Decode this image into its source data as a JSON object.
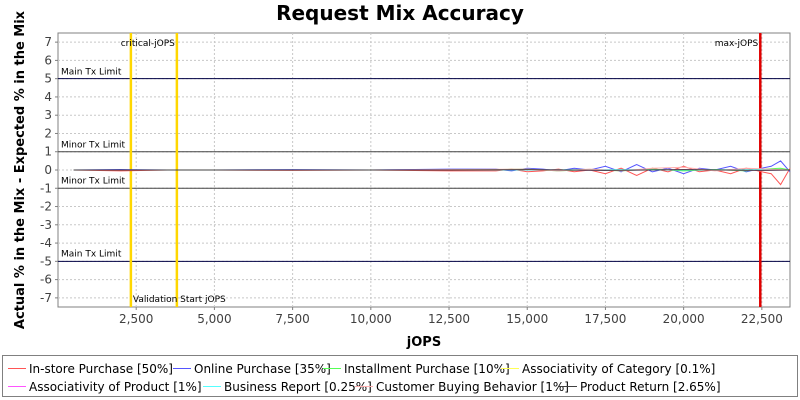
{
  "chart_data": {
    "type": "line",
    "title": "Request Mix Accuracy",
    "xlabel": "jOPS",
    "ylabel": "Actual % in the Mix - Expected % in the Mix",
    "xlim": [
      0,
      23400
    ],
    "ylim": [
      -7.5,
      7.5
    ],
    "x_ticks": [
      2500,
      5000,
      7500,
      10000,
      12500,
      15000,
      17500,
      20000,
      22500
    ],
    "x_tick_labels": [
      "2,500",
      "5,000",
      "7,500",
      "10,000",
      "12,500",
      "15,000",
      "17,500",
      "20,000",
      "22,500"
    ],
    "y_ticks": [
      -7,
      -6,
      -5,
      -4,
      -3,
      -2,
      -1,
      0,
      1,
      2,
      3,
      4,
      5,
      6,
      7
    ],
    "grid": true,
    "legend_position": "bottom",
    "horizontal_lines": [
      {
        "y": 5,
        "label": "Main Tx Limit",
        "color": "#000044"
      },
      {
        "y": 1,
        "label": "Minor Tx Limit",
        "color": "#444444"
      },
      {
        "y": -1,
        "label": "Minor Tx Limit",
        "color": "#444444"
      },
      {
        "y": -5,
        "label": "Main Tx Limit",
        "color": "#000044"
      }
    ],
    "vertical_lines": [
      {
        "x": 2330,
        "label": "Validation Start jOPS",
        "color": "#ffd700"
      },
      {
        "x": 3800,
        "label": "critical-jOPS",
        "color": "#ffd700"
      },
      {
        "x": 22450,
        "label": "max-jOPS",
        "color": "#e00000"
      }
    ],
    "series": [
      {
        "name": "In-store Purchase [50%]",
        "color": "#ff5555",
        "x": [
          500,
          2000,
          3500,
          5000,
          7500,
          10000,
          12500,
          14000,
          14500,
          15000,
          15500,
          16000,
          16500,
          17000,
          17500,
          18000,
          18500,
          19000,
          19500,
          20000,
          20500,
          21000,
          21500,
          22000,
          22500,
          22800,
          23100,
          23400
        ],
        "y": [
          0.0,
          -0.05,
          0.0,
          0.0,
          -0.02,
          0.0,
          -0.05,
          -0.05,
          0.05,
          -0.1,
          -0.05,
          0.05,
          -0.1,
          0.0,
          -0.2,
          0.1,
          -0.3,
          0.1,
          -0.1,
          0.2,
          -0.1,
          0.0,
          -0.2,
          0.1,
          -0.1,
          -0.2,
          -0.8,
          0.1
        ]
      },
      {
        "name": "Online Purchase [35%]",
        "color": "#5555ff",
        "x": [
          500,
          2000,
          3500,
          5000,
          7500,
          10000,
          12500,
          14000,
          14500,
          15000,
          15500,
          16000,
          16500,
          17000,
          17500,
          18000,
          18500,
          19000,
          19500,
          20000,
          20500,
          21000,
          21500,
          22000,
          22500,
          22800,
          23100,
          23400
        ],
        "y": [
          0.0,
          0.03,
          0.0,
          0.0,
          0.02,
          0.0,
          0.05,
          0.05,
          -0.05,
          0.1,
          0.05,
          -0.05,
          0.1,
          0.0,
          0.2,
          -0.1,
          0.3,
          -0.1,
          0.1,
          -0.2,
          0.1,
          0.0,
          0.2,
          -0.1,
          0.1,
          0.2,
          0.5,
          -0.1
        ]
      },
      {
        "name": "Installment Purchase [10%]",
        "color": "#55ff55",
        "x": [
          500,
          2000,
          3500,
          5000,
          7500,
          10000,
          12500,
          14000,
          15000,
          16000,
          17000,
          18000,
          19000,
          20000,
          21000,
          22000,
          22500,
          23100,
          23400
        ],
        "y": [
          0.0,
          0.0,
          0.0,
          0.0,
          0.0,
          0.0,
          0.0,
          0.02,
          0.05,
          -0.05,
          0.03,
          -0.05,
          0.05,
          -0.05,
          0.03,
          -0.05,
          0.05,
          0.1,
          0.0
        ]
      },
      {
        "name": "Associativity of Category [0.1%]",
        "color": "#ffff55",
        "x": [
          500,
          5000,
          10000,
          15000,
          20000,
          23400
        ],
        "y": [
          0.0,
          0.0,
          0.0,
          0.0,
          0.0,
          0.0
        ]
      },
      {
        "name": "Associativity of Product [1%]",
        "color": "#ff55ff",
        "x": [
          500,
          5000,
          10000,
          15000,
          17500,
          20000,
          22500,
          23400
        ],
        "y": [
          0.0,
          0.0,
          0.0,
          0.02,
          -0.02,
          0.02,
          -0.02,
          0.0
        ]
      },
      {
        "name": "Business Report [0.25%]",
        "color": "#55ffff",
        "x": [
          500,
          5000,
          10000,
          15000,
          17500,
          20000,
          22500,
          23400
        ],
        "y": [
          0.0,
          0.0,
          0.0,
          0.0,
          0.02,
          0.0,
          0.02,
          0.0
        ]
      },
      {
        "name": "Customer Buying Behavior [1%]",
        "color": "#ffafaf",
        "x": [
          500,
          5000,
          10000,
          15000,
          16000,
          17000,
          18000,
          19000,
          20000,
          21000,
          22000,
          23400
        ],
        "y": [
          0.0,
          0.0,
          0.0,
          0.05,
          -0.05,
          0.05,
          -0.05,
          0.1,
          0.15,
          -0.05,
          0.1,
          0.0
        ]
      },
      {
        "name": "Product Return [2.65%]",
        "color": "#404040",
        "x": [
          500,
          2000,
          5000,
          10000,
          12500,
          15000,
          17500,
          20000,
          22500,
          23400
        ],
        "y": [
          0.0,
          0.0,
          0.0,
          0.0,
          0.0,
          0.02,
          -0.02,
          0.02,
          -0.02,
          0.0
        ]
      }
    ]
  }
}
